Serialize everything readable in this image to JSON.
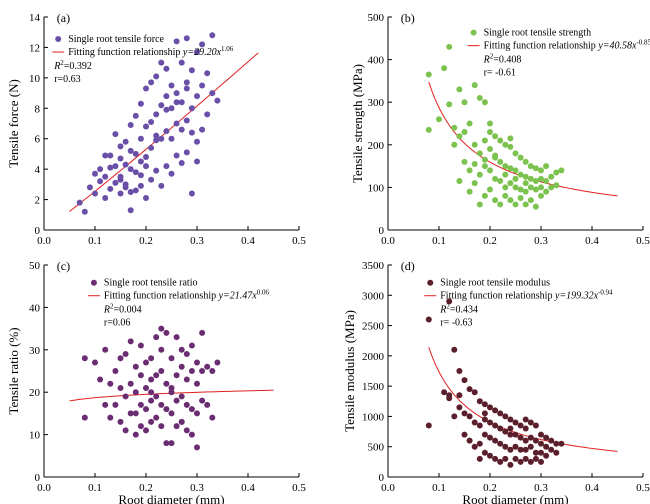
{
  "chart_data": [
    {
      "type": "scatter",
      "panel_label": "(a)",
      "xlabel": "",
      "ylabel": "Tensile force (N)",
      "xlim": [
        0,
        0.5
      ],
      "ylim": [
        0,
        14
      ],
      "x_ticks": [
        "0.0",
        "0.1",
        "0.2",
        "0.3",
        "0.4",
        "0.5"
      ],
      "y_ticks": [
        "0",
        "2",
        "4",
        "6",
        "8",
        "10",
        "12",
        "14"
      ],
      "color": "#6a4fa8",
      "legend_position": "top-left",
      "series": [
        {
          "name": "Single root tensile force",
          "x": [
            0.07,
            0.08,
            0.09,
            0.1,
            0.1,
            0.11,
            0.11,
            0.12,
            0.12,
            0.12,
            0.13,
            0.13,
            0.13,
            0.14,
            0.14,
            0.14,
            0.15,
            0.15,
            0.15,
            0.15,
            0.16,
            0.16,
            0.16,
            0.16,
            0.17,
            0.17,
            0.17,
            0.17,
            0.17,
            0.18,
            0.18,
            0.18,
            0.18,
            0.19,
            0.19,
            0.19,
            0.19,
            0.2,
            0.2,
            0.2,
            0.2,
            0.21,
            0.21,
            0.21,
            0.21,
            0.22,
            0.22,
            0.22,
            0.22,
            0.23,
            0.23,
            0.23,
            0.23,
            0.24,
            0.24,
            0.24,
            0.24,
            0.25,
            0.25,
            0.25,
            0.25,
            0.26,
            0.26,
            0.26,
            0.26,
            0.27,
            0.27,
            0.27,
            0.27,
            0.28,
            0.28,
            0.28,
            0.28,
            0.29,
            0.29,
            0.29,
            0.29,
            0.3,
            0.3,
            0.3,
            0.3,
            0.31,
            0.31,
            0.31,
            0.32,
            0.32,
            0.33,
            0.33,
            0.34,
            0.19,
            0.22,
            0.24,
            0.26,
            0.28,
            0.15,
            0.2
          ],
          "y": [
            1.8,
            1.2,
            2.8,
            3.7,
            2.4,
            3.2,
            4.0,
            4.9,
            2.1,
            3.5,
            4.9,
            2.7,
            4.1,
            4.2,
            3.1,
            6.3,
            4.7,
            3.3,
            2.4,
            5.5,
            5.8,
            4.3,
            2.8,
            3.0,
            6.9,
            5.2,
            4.0,
            2.5,
            1.3,
            7.5,
            5.0,
            3.8,
            2.6,
            8.3,
            6.0,
            4.5,
            2.9,
            9.3,
            6.8,
            4.2,
            2.1,
            9.7,
            7.1,
            5.4,
            3.3,
            10.1,
            7.6,
            6.2,
            3.9,
            11.0,
            8.2,
            6.0,
            2.9,
            10.6,
            8.8,
            6.5,
            4.2,
            9.5,
            8.0,
            6.0,
            3.7,
            12.4,
            9.0,
            7.0,
            4.9,
            11.0,
            8.4,
            6.6,
            4.4,
            12.6,
            9.3,
            7.2,
            5.1,
            10.5,
            8.0,
            6.4,
            2.4,
            11.7,
            8.8,
            5.8,
            4.5,
            12.2,
            9.5,
            6.6,
            10.3,
            7.6,
            12.8,
            9.0,
            8.5,
            3.6,
            5.9,
            7.9,
            8.4,
            9.7,
            3.5,
            4.8
          ]
        }
      ],
      "fit": {
        "name": "Fitting function relationship",
        "eq_prefix": "y=29.20x",
        "eq_exp": "1.06",
        "a": 29.2,
        "b": 1.06,
        "x_range": [
          0.05,
          0.42
        ]
      },
      "r2_label": "R",
      "r2_value": "=0.392",
      "r_value": "r=0.63"
    },
    {
      "type": "scatter",
      "panel_label": "(b)",
      "xlabel": "",
      "ylabel": "Tensile strength (MPa)",
      "xlim": [
        0,
        0.5
      ],
      "ylim": [
        0,
        500
      ],
      "x_ticks": [
        "0.0",
        "0.1",
        "0.2",
        "0.3",
        "0.4",
        "0.5"
      ],
      "y_ticks": [
        "0",
        "100",
        "200",
        "300",
        "400",
        "500"
      ],
      "color": "#7cc24e",
      "legend_position": "top-right",
      "series": [
        {
          "name": "Single root tensile strength",
          "x": [
            0.08,
            0.08,
            0.1,
            0.11,
            0.12,
            0.12,
            0.13,
            0.13,
            0.14,
            0.14,
            0.15,
            0.15,
            0.15,
            0.16,
            0.16,
            0.16,
            0.17,
            0.17,
            0.17,
            0.18,
            0.18,
            0.18,
            0.18,
            0.19,
            0.19,
            0.19,
            0.19,
            0.2,
            0.2,
            0.2,
            0.2,
            0.21,
            0.21,
            0.21,
            0.21,
            0.22,
            0.22,
            0.22,
            0.22,
            0.23,
            0.23,
            0.23,
            0.23,
            0.24,
            0.24,
            0.24,
            0.24,
            0.25,
            0.25,
            0.25,
            0.25,
            0.26,
            0.26,
            0.26,
            0.26,
            0.27,
            0.27,
            0.27,
            0.27,
            0.28,
            0.28,
            0.28,
            0.28,
            0.29,
            0.29,
            0.29,
            0.29,
            0.3,
            0.3,
            0.3,
            0.3,
            0.31,
            0.31,
            0.31,
            0.32,
            0.32,
            0.33,
            0.33,
            0.34,
            0.17,
            0.19,
            0.21,
            0.23,
            0.25,
            0.27,
            0.2,
            0.24,
            0.14
          ],
          "y": [
            365,
            235,
            260,
            380,
            430,
            295,
            240,
            200,
            330,
            115,
            300,
            230,
            160,
            250,
            140,
            90,
            340,
            200,
            110,
            310,
            180,
            130,
            60,
            300,
            210,
            150,
            80,
            230,
            190,
            140,
            95,
            220,
            170,
            120,
            70,
            210,
            160,
            115,
            60,
            200,
            150,
            100,
            80,
            195,
            145,
            110,
            70,
            180,
            140,
            100,
            60,
            170,
            130,
            95,
            75,
            160,
            125,
            90,
            60,
            150,
            120,
            100,
            70,
            145,
            115,
            95,
            55,
            140,
            120,
            100,
            80,
            150,
            115,
            90,
            125,
            100,
            135,
            105,
            140,
            155,
            165,
            175,
            130,
            120,
            110,
            250,
            215,
            220
          ]
        }
      ],
      "fit": {
        "name": "Fitting function relationship",
        "eq_prefix": "y=40.58x",
        "eq_exp": "-0.85",
        "a": 40.58,
        "b": -0.85,
        "x_range": [
          0.08,
          0.45
        ]
      },
      "r2_label": "R",
      "r2_value": "=0.408",
      "r_value": "r= -0.61"
    },
    {
      "type": "scatter",
      "panel_label": "(c)",
      "xlabel": "Root diameter (mm)",
      "ylabel": "Tensile ratio (%)",
      "xlim": [
        0,
        0.5
      ],
      "ylim": [
        0,
        50
      ],
      "x_ticks": [
        "0.0",
        "0.1",
        "0.2",
        "0.3",
        "0.4",
        "0.5"
      ],
      "y_ticks": [
        "0",
        "10",
        "20",
        "30",
        "40",
        "50"
      ],
      "color": "#6b2d72",
      "legend_position": "top-center",
      "series": [
        {
          "name": "Single root tensile ratio",
          "x": [
            0.08,
            0.08,
            0.1,
            0.11,
            0.12,
            0.12,
            0.13,
            0.13,
            0.14,
            0.14,
            0.15,
            0.15,
            0.15,
            0.16,
            0.16,
            0.16,
            0.17,
            0.17,
            0.17,
            0.18,
            0.18,
            0.18,
            0.18,
            0.19,
            0.19,
            0.19,
            0.19,
            0.2,
            0.2,
            0.2,
            0.2,
            0.21,
            0.21,
            0.21,
            0.21,
            0.22,
            0.22,
            0.22,
            0.22,
            0.23,
            0.23,
            0.23,
            0.23,
            0.24,
            0.24,
            0.24,
            0.24,
            0.25,
            0.25,
            0.25,
            0.25,
            0.26,
            0.26,
            0.26,
            0.26,
            0.27,
            0.27,
            0.27,
            0.27,
            0.28,
            0.28,
            0.28,
            0.28,
            0.29,
            0.29,
            0.29,
            0.29,
            0.3,
            0.3,
            0.3,
            0.3,
            0.31,
            0.31,
            0.31,
            0.32,
            0.32,
            0.33,
            0.33,
            0.34,
            0.21,
            0.23,
            0.25,
            0.27
          ],
          "y": [
            28,
            14,
            27,
            23,
            30,
            17,
            22,
            14,
            25,
            17,
            28,
            21,
            13,
            29,
            19,
            11,
            32,
            22,
            15,
            26,
            20,
            15,
            10,
            31,
            24,
            17,
            12,
            27,
            21,
            16,
            11,
            28,
            23,
            18,
            13,
            33,
            24,
            19,
            14,
            30,
            25,
            17,
            12,
            34,
            22,
            16,
            8,
            28,
            20,
            15,
            8,
            33,
            24,
            18,
            12,
            30,
            26,
            19,
            13,
            29,
            23,
            17,
            11,
            31,
            25,
            16,
            10,
            27,
            22,
            15,
            7,
            34,
            25,
            18,
            26,
            17,
            25,
            14,
            27,
            20,
            35,
            21,
            13
          ]
        }
      ],
      "fit": {
        "name": "Fitting function relationship",
        "eq_prefix": "y=21.47x",
        "eq_exp": "0.06",
        "a": 21.47,
        "b": 0.06,
        "x_range": [
          0.05,
          0.45
        ]
      },
      "r2_label": "R",
      "r2_value": "=0.004",
      "r_value": "r=0.06"
    },
    {
      "type": "scatter",
      "panel_label": "(d)",
      "xlabel": "Root diameter (mm)",
      "ylabel": "Tensile modulus (MPa)",
      "xlim": [
        0,
        0.5
      ],
      "ylim": [
        0,
        3500
      ],
      "x_ticks": [
        "0.0",
        "0.1",
        "0.2",
        "0.3",
        "0.4",
        "0.5"
      ],
      "y_ticks": [
        "0",
        "500",
        "1000",
        "1500",
        "2000",
        "2500",
        "3000",
        "3500"
      ],
      "color": "#5b1f2c",
      "legend_position": "top-center",
      "series": [
        {
          "name": "Single root tensile modulus",
          "x": [
            0.08,
            0.08,
            0.11,
            0.12,
            0.12,
            0.13,
            0.13,
            0.14,
            0.14,
            0.15,
            0.15,
            0.15,
            0.16,
            0.16,
            0.16,
            0.17,
            0.17,
            0.17,
            0.18,
            0.18,
            0.18,
            0.18,
            0.19,
            0.19,
            0.19,
            0.19,
            0.2,
            0.2,
            0.2,
            0.2,
            0.21,
            0.21,
            0.21,
            0.21,
            0.22,
            0.22,
            0.22,
            0.22,
            0.23,
            0.23,
            0.23,
            0.23,
            0.24,
            0.24,
            0.24,
            0.24,
            0.25,
            0.25,
            0.25,
            0.25,
            0.26,
            0.26,
            0.26,
            0.26,
            0.27,
            0.27,
            0.27,
            0.27,
            0.28,
            0.28,
            0.28,
            0.28,
            0.29,
            0.29,
            0.29,
            0.29,
            0.3,
            0.3,
            0.3,
            0.3,
            0.31,
            0.31,
            0.31,
            0.32,
            0.32,
            0.33,
            0.33,
            0.34,
            0.12,
            0.14,
            0.19,
            0.24,
            0.27
          ],
          "y": [
            2600,
            850,
            1400,
            2900,
            1300,
            2100,
            1000,
            1750,
            1150,
            1600,
            1050,
            700,
            1450,
            1000,
            600,
            1400,
            900,
            500,
            1250,
            850,
            550,
            300,
            1200,
            950,
            700,
            400,
            1150,
            900,
            650,
            350,
            1100,
            850,
            600,
            300,
            1050,
            800,
            550,
            250,
            1000,
            750,
            500,
            300,
            950,
            700,
            450,
            200,
            900,
            700,
            500,
            300,
            850,
            650,
            450,
            250,
            800,
            600,
            450,
            300,
            900,
            650,
            500,
            250,
            850,
            600,
            400,
            300,
            700,
            550,
            400,
            250,
            650,
            500,
            350,
            600,
            450,
            550,
            400,
            550,
            1350,
            1350,
            1050,
            800,
            950
          ]
        }
      ],
      "fit": {
        "name": "Fitting function relationship",
        "eq_prefix": "y=199.32x",
        "eq_exp": "-0.94",
        "a": 199.32,
        "b": -0.94,
        "x_range": [
          0.08,
          0.45
        ]
      },
      "r2_label": "R",
      "r2_value": "=0.434",
      "r_value": "r= -0.63"
    }
  ]
}
